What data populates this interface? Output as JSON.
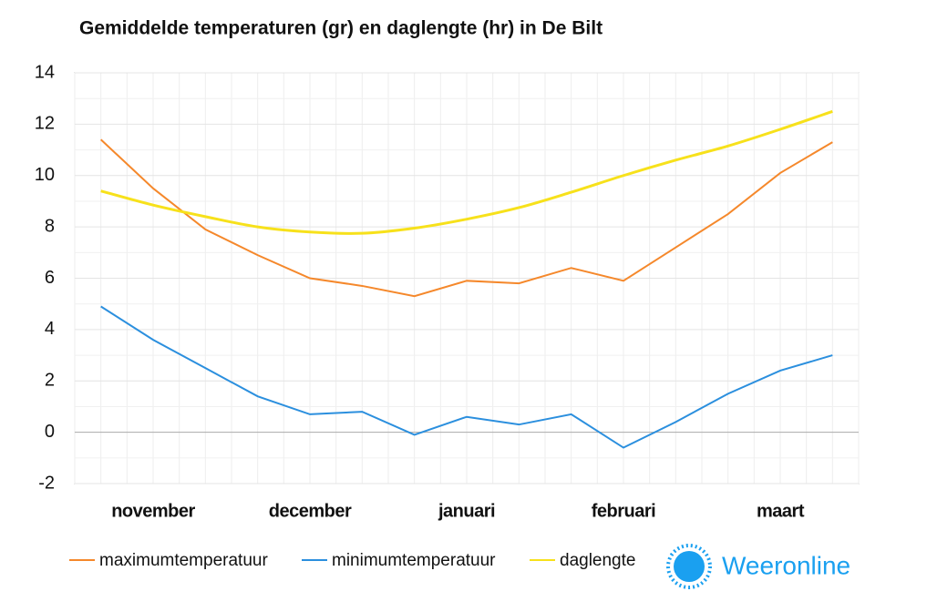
{
  "chart_data": {
    "type": "line",
    "title": "Gemiddelde temperaturen (gr) en daglengte (hr) in De Bilt",
    "categories": [
      null,
      "november",
      null,
      null,
      "december",
      null,
      null,
      "januari",
      null,
      null,
      "februari",
      null,
      null,
      "maart",
      null
    ],
    "series": [
      {
        "name": "maximumtemperatuur",
        "color": "#f5882b",
        "values": [
          11.4,
          9.5,
          7.9,
          6.9,
          6.0,
          5.7,
          5.3,
          5.9,
          5.8,
          6.4,
          5.9,
          7.2,
          8.5,
          10.1,
          11.3
        ]
      },
      {
        "name": "minimumtemperatuur",
        "color": "#2b8fde",
        "values": [
          4.9,
          3.6,
          2.5,
          1.4,
          0.7,
          0.8,
          -0.1,
          0.6,
          0.3,
          0.7,
          -0.6,
          0.4,
          1.5,
          2.4,
          3.0
        ]
      },
      {
        "name": "daglengte",
        "color": "#f7e11b",
        "values": [
          9.4,
          8.85,
          8.4,
          8.0,
          7.8,
          7.75,
          7.95,
          8.3,
          8.75,
          9.35,
          10.0,
          10.6,
          11.15,
          11.8,
          12.5
        ]
      }
    ],
    "ylim": [
      -2,
      14
    ],
    "yticks": [
      -2,
      0,
      2,
      4,
      6,
      8,
      10,
      12,
      14
    ],
    "grid": true,
    "logo": "Weeronline"
  }
}
